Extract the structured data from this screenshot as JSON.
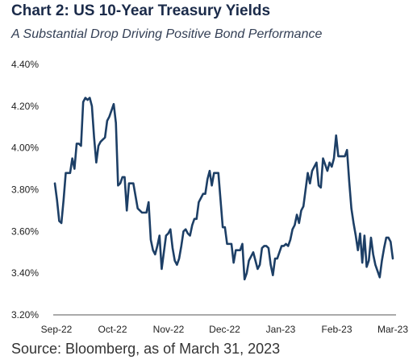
{
  "chart_data": {
    "type": "line",
    "title": "Chart 2: US 10-Year Treasury Yields",
    "subtitle": "A Substantial Drop Driving Positive Bond Performance",
    "source": "Source: Bloomberg, as of March 31, 2023",
    "ylim": [
      3.2,
      4.4
    ],
    "y_ticks": [
      "4.40%",
      "4.20%",
      "4.00%",
      "3.80%",
      "3.60%",
      "3.40%",
      "3.20%"
    ],
    "x_ticks": [
      "Sep-22",
      "Oct-22",
      "Nov-22",
      "Dec-22",
      "Jan-23",
      "Feb-23",
      "Mar-23"
    ],
    "grid": false,
    "series": [
      {
        "color": "#1d3f66",
        "points": [
          [
            0,
            3.83
          ],
          [
            1,
            3.75
          ],
          [
            2,
            3.65
          ],
          [
            3,
            3.64
          ],
          [
            4,
            3.75
          ],
          [
            5,
            3.88
          ],
          [
            6,
            3.88
          ],
          [
            7,
            3.88
          ],
          [
            8,
            3.95
          ],
          [
            9,
            3.9
          ],
          [
            10,
            4.02
          ],
          [
            11,
            4.02
          ],
          [
            12,
            4.01
          ],
          [
            13,
            4.22
          ],
          [
            14,
            4.24
          ],
          [
            15,
            4.23
          ],
          [
            16,
            4.24
          ],
          [
            17,
            4.2
          ],
          [
            18,
            4.05
          ],
          [
            19,
            3.93
          ],
          [
            20,
            4.01
          ],
          [
            21,
            4.03
          ],
          [
            22,
            4.04
          ],
          [
            23,
            4.05
          ],
          [
            24,
            4.13
          ],
          [
            25,
            4.15
          ],
          [
            26,
            4.18
          ],
          [
            27,
            4.21
          ],
          [
            28,
            4.12
          ],
          [
            29,
            3.82
          ],
          [
            30,
            3.83
          ],
          [
            31,
            3.86
          ],
          [
            32,
            3.86
          ],
          [
            33,
            3.7
          ],
          [
            34,
            3.83
          ],
          [
            35,
            3.83
          ],
          [
            36,
            3.83
          ],
          [
            37,
            3.77
          ],
          [
            38,
            3.71
          ],
          [
            39,
            3.7
          ],
          [
            40,
            3.69
          ],
          [
            41,
            3.69
          ],
          [
            42,
            3.69
          ],
          [
            43,
            3.74
          ],
          [
            44,
            3.56
          ],
          [
            45,
            3.51
          ],
          [
            46,
            3.49
          ],
          [
            47,
            3.53
          ],
          [
            48,
            3.58
          ],
          [
            49,
            3.42
          ],
          [
            50,
            3.5
          ],
          [
            51,
            3.58
          ],
          [
            52,
            3.59
          ],
          [
            53,
            3.61
          ],
          [
            54,
            3.52
          ],
          [
            55,
            3.46
          ],
          [
            56,
            3.44
          ],
          [
            57,
            3.47
          ],
          [
            58,
            3.53
          ],
          [
            59,
            3.6
          ],
          [
            60,
            3.61
          ],
          [
            61,
            3.59
          ],
          [
            62,
            3.58
          ],
          [
            63,
            3.63
          ],
          [
            64,
            3.66
          ],
          [
            65,
            3.66
          ],
          [
            66,
            3.74
          ],
          [
            67,
            3.76
          ],
          [
            68,
            3.78
          ],
          [
            69,
            3.78
          ],
          [
            70,
            3.85
          ],
          [
            71,
            3.89
          ],
          [
            72,
            3.82
          ],
          [
            73,
            3.88
          ],
          [
            74,
            3.88
          ],
          [
            75,
            3.88
          ],
          [
            76,
            3.75
          ],
          [
            77,
            3.62
          ],
          [
            78,
            3.62
          ],
          [
            79,
            3.54
          ],
          [
            80,
            3.54
          ],
          [
            81,
            3.54
          ],
          [
            82,
            3.45
          ],
          [
            83,
            3.51
          ],
          [
            84,
            3.51
          ],
          [
            85,
            3.51
          ],
          [
            86,
            3.54
          ],
          [
            87,
            3.37
          ],
          [
            88,
            3.4
          ],
          [
            89,
            3.46
          ],
          [
            90,
            3.48
          ],
          [
            91,
            3.5
          ],
          [
            92,
            3.46
          ],
          [
            93,
            3.42
          ],
          [
            94,
            3.44
          ],
          [
            95,
            3.52
          ],
          [
            96,
            3.53
          ],
          [
            97,
            3.53
          ],
          [
            98,
            3.52
          ],
          [
            99,
            3.44
          ],
          [
            100,
            3.39
          ],
          [
            101,
            3.47
          ],
          [
            102,
            3.47
          ],
          [
            103,
            3.5
          ],
          [
            104,
            3.53
          ],
          [
            105,
            3.53
          ],
          [
            106,
            3.54
          ],
          [
            107,
            3.53
          ],
          [
            108,
            3.56
          ],
          [
            109,
            3.61
          ],
          [
            110,
            3.63
          ],
          [
            111,
            3.68
          ],
          [
            112,
            3.64
          ],
          [
            113,
            3.7
          ],
          [
            114,
            3.72
          ],
          [
            115,
            3.8
          ],
          [
            116,
            3.88
          ],
          [
            117,
            3.83
          ],
          [
            118,
            3.89
          ],
          [
            119,
            3.91
          ],
          [
            120,
            3.93
          ],
          [
            121,
            3.82
          ],
          [
            122,
            3.81
          ],
          [
            123,
            3.95
          ],
          [
            124,
            3.92
          ],
          [
            125,
            3.89
          ],
          [
            126,
            3.93
          ],
          [
            127,
            3.91
          ],
          [
            128,
            3.95
          ],
          [
            129,
            4.06
          ],
          [
            130,
            3.96
          ],
          [
            131,
            3.96
          ],
          [
            132,
            3.96
          ],
          [
            133,
            3.96
          ],
          [
            134,
            3.99
          ],
          [
            135,
            3.84
          ],
          [
            136,
            3.71
          ],
          [
            137,
            3.64
          ],
          [
            138,
            3.58
          ],
          [
            139,
            3.51
          ],
          [
            140,
            3.59
          ],
          [
            141,
            3.45
          ],
          [
            142,
            3.58
          ],
          [
            143,
            3.43
          ],
          [
            144,
            3.46
          ],
          [
            145,
            3.57
          ],
          [
            146,
            3.49
          ],
          [
            147,
            3.44
          ],
          [
            148,
            3.41
          ],
          [
            149,
            3.38
          ],
          [
            150,
            3.46
          ],
          [
            151,
            3.52
          ],
          [
            152,
            3.57
          ],
          [
            153,
            3.57
          ],
          [
            154,
            3.55
          ],
          [
            155,
            3.47
          ]
        ]
      }
    ]
  }
}
